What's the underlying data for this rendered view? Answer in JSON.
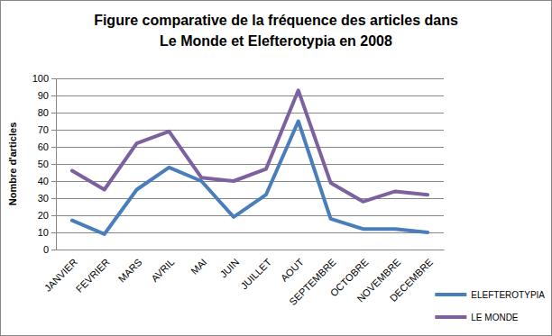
{
  "chart_data": {
    "type": "line",
    "title": [
      "Figure comparative de la fréquence des articles dans",
      "Le Monde et Elefterotypia en 2008"
    ],
    "y_label": "Nombre d'articles",
    "categories": [
      "JANVIER",
      "FEVRIER",
      "MARS",
      "AVRIL",
      "MAI",
      "JUIN",
      "JUILLET",
      "AOUT",
      "SEPTEMBRE",
      "OCTOBRE",
      "NOVEMBRE",
      "DECEMBRE"
    ],
    "series": [
      {
        "name": "ELEFTEROTYPIA",
        "color": "#4a7ebb",
        "values": [
          17,
          9,
          35,
          48,
          40,
          19,
          32,
          75,
          18,
          12,
          12,
          10
        ]
      },
      {
        "name": "LE MONDE",
        "color": "#7d60a0",
        "values": [
          46,
          35,
          62,
          69,
          42,
          40,
          47,
          93,
          39,
          28,
          34,
          32
        ]
      }
    ],
    "ylim": [
      0,
      100
    ],
    "yticks": [
      0,
      10,
      20,
      30,
      40,
      50,
      60,
      70,
      80,
      90,
      100
    ],
    "grid": true,
    "legend": "right"
  }
}
